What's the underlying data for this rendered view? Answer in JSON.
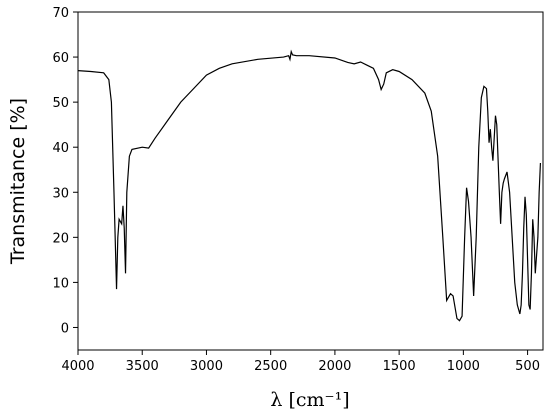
{
  "chart_data": {
    "type": "line",
    "xlabel": "λ [cm⁻¹]",
    "ylabel": "Transmitance [%]",
    "xlim": [
      4000,
      380
    ],
    "ylim": [
      -5,
      70
    ],
    "xticks": [
      4000,
      3500,
      3000,
      2500,
      2000,
      1500,
      1000,
      500
    ],
    "yticks": [
      0,
      10,
      20,
      30,
      40,
      50,
      60,
      70
    ],
    "series": [
      {
        "color": "#000000",
        "x": [
          4000,
          3900,
          3800,
          3760,
          3740,
          3720,
          3700,
          3690,
          3680,
          3660,
          3650,
          3640,
          3630,
          3620,
          3600,
          3580,
          3500,
          3450,
          3400,
          3300,
          3200,
          3100,
          3000,
          2900,
          2800,
          2600,
          2400,
          2360,
          2350,
          2340,
          2330,
          2300,
          2200,
          2000,
          1900,
          1850,
          1800,
          1750,
          1700,
          1660,
          1640,
          1620,
          1600,
          1550,
          1500,
          1400,
          1300,
          1250,
          1200,
          1160,
          1130,
          1100,
          1080,
          1050,
          1030,
          1010,
          990,
          975,
          960,
          940,
          920,
          900,
          880,
          860,
          840,
          820,
          810,
          800,
          790,
          780,
          770,
          760,
          750,
          740,
          720,
          710,
          700,
          690,
          680,
          660,
          640,
          620,
          600,
          580,
          560,
          550,
          540,
          530,
          520,
          510,
          500,
          490,
          480,
          470,
          460,
          450,
          440,
          420,
          410,
          400
        ],
        "values": [
          57,
          56.8,
          56.5,
          55,
          50,
          30,
          8.5,
          20,
          24,
          23,
          27,
          22,
          12,
          30,
          38,
          39.5,
          40,
          39.8,
          42,
          46,
          50,
          53,
          56,
          57.5,
          58.5,
          59.5,
          60,
          60.3,
          59.5,
          61.2,
          60.5,
          60.3,
          60.3,
          59.8,
          58.8,
          58.5,
          58.9,
          58.2,
          57.5,
          55,
          52.8,
          54,
          56.5,
          57.2,
          56.8,
          55,
          52,
          48,
          38,
          20,
          6,
          7.5,
          7,
          2,
          1.5,
          2.5,
          20,
          31,
          28,
          20,
          7,
          20,
          40,
          51,
          53.5,
          53,
          48,
          41,
          44,
          40,
          37,
          42,
          47,
          45,
          30,
          23,
          30,
          32,
          33,
          34.5,
          30,
          20,
          10,
          5,
          3,
          5,
          12,
          22,
          29,
          25,
          15,
          5,
          4,
          12,
          24,
          20,
          12,
          20,
          30,
          36.5
        ]
      }
    ]
  }
}
